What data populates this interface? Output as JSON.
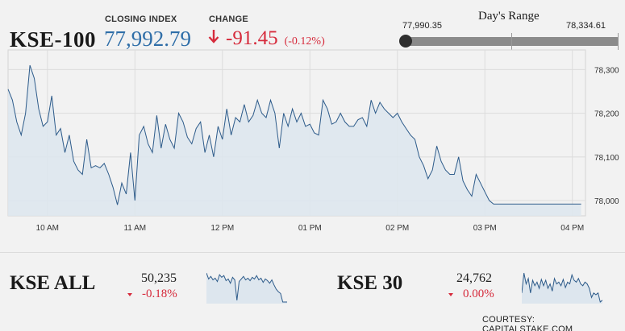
{
  "header": {
    "index_name": "KSE-100",
    "closing_label": "CLOSING INDEX",
    "closing_value": "77,992.79",
    "change_label": "CHANGE",
    "change_value": "-91.45",
    "change_pct": "(-0.12%)",
    "change_icon": "arrow-down-icon",
    "down_color": "#d62b3c",
    "value_color": "#2f6ea8"
  },
  "days_range": {
    "title": "Day's Range",
    "low": "77,990.35",
    "high": "78,334.61"
  },
  "chart_data": [
    {
      "type": "area",
      "title": "",
      "x_ticks": [
        "10 AM",
        "11 AM",
        "12 PM",
        "01 PM",
        "02 PM",
        "03 PM",
        "04 PM"
      ],
      "y_ticks": [
        "78,000",
        "78,100",
        "78,200",
        "78,300"
      ],
      "ylim": [
        77965,
        78345
      ],
      "xlim": [
        9.55,
        16.15
      ],
      "grid": true,
      "line_color": "#2d5b8a",
      "fill_color": "#dde6ee",
      "x": [
        9.55,
        9.6,
        9.65,
        9.7,
        9.75,
        9.8,
        9.85,
        9.9,
        9.95,
        10.0,
        10.05,
        10.1,
        10.15,
        10.2,
        10.25,
        10.3,
        10.35,
        10.4,
        10.45,
        10.5,
        10.55,
        10.6,
        10.65,
        10.7,
        10.75,
        10.8,
        10.85,
        10.9,
        10.95,
        11.0,
        11.05,
        11.1,
        11.15,
        11.2,
        11.25,
        11.3,
        11.35,
        11.4,
        11.45,
        11.5,
        11.55,
        11.6,
        11.65,
        11.7,
        11.75,
        11.8,
        11.85,
        11.9,
        11.95,
        12.0,
        12.05,
        12.1,
        12.15,
        12.2,
        12.25,
        12.3,
        12.35,
        12.4,
        12.45,
        12.5,
        12.55,
        12.6,
        12.65,
        12.7,
        12.75,
        12.8,
        12.85,
        12.9,
        12.95,
        13.0,
        13.05,
        13.1,
        13.15,
        13.2,
        13.25,
        13.3,
        13.35,
        13.4,
        13.45,
        13.5,
        13.55,
        13.6,
        13.65,
        13.7,
        13.75,
        13.8,
        13.85,
        13.9,
        13.95,
        14.0,
        14.05,
        14.1,
        14.15,
        14.2,
        14.25,
        14.3,
        14.35,
        14.4,
        14.45,
        14.5,
        14.55,
        14.6,
        14.65,
        14.7,
        14.75,
        14.8,
        14.85,
        14.9,
        14.95,
        15.0,
        15.05,
        15.1,
        15.15,
        15.2,
        15.25,
        15.3,
        15.35,
        15.4,
        15.45,
        15.5,
        15.55,
        15.6,
        15.65,
        15.7,
        15.75,
        15.8,
        15.85,
        15.9,
        15.95,
        16.0,
        16.1
      ],
      "values": [
        78255,
        78230,
        78180,
        78150,
        78200,
        78310,
        78280,
        78210,
        78170,
        78180,
        78240,
        78150,
        78165,
        78110,
        78150,
        78090,
        78070,
        78060,
        78140,
        78075,
        78080,
        78075,
        78085,
        78060,
        78030,
        77990,
        78040,
        78015,
        78110,
        78000,
        78150,
        78170,
        78130,
        78110,
        78195,
        78120,
        78175,
        78140,
        78120,
        78200,
        78180,
        78145,
        78130,
        78165,
        78180,
        78110,
        78150,
        78100,
        78170,
        78140,
        78210,
        78150,
        78190,
        78180,
        78220,
        78180,
        78195,
        78230,
        78200,
        78190,
        78230,
        78200,
        78120,
        78200,
        78170,
        78210,
        78180,
        78200,
        78170,
        78175,
        78155,
        78150,
        78230,
        78210,
        78175,
        78180,
        78200,
        78180,
        78170,
        78170,
        78185,
        78190,
        78170,
        78230,
        78200,
        78225,
        78210,
        78200,
        78190,
        78200,
        78180,
        78165,
        78150,
        78140,
        78100,
        78080,
        78050,
        78070,
        78125,
        78090,
        78070,
        78060,
        78060,
        78100,
        78045,
        78025,
        78010,
        78060,
        78040,
        78020,
        78000,
        77992,
        77992,
        77992,
        77992,
        77992,
        77992,
        77992,
        77992,
        77992,
        77992,
        77992,
        77992,
        77992,
        77992,
        77992,
        77992,
        77992,
        77992,
        77992,
        77992
      ]
    },
    {
      "type": "area",
      "title": "",
      "line_color": "#2d5b8a",
      "fill_color": "#dde6ee",
      "values": [
        52,
        45,
        48,
        44,
        46,
        42,
        50,
        47,
        49,
        43,
        45,
        40,
        47,
        44,
        20,
        42,
        45,
        48,
        44,
        46,
        43,
        47,
        45,
        49,
        44,
        46,
        41,
        45,
        43,
        40,
        44,
        38,
        33,
        30,
        28,
        18,
        18,
        18
      ]
    },
    {
      "type": "area",
      "title": "",
      "line_color": "#2d5b8a",
      "fill_color": "#dde6ee",
      "values": [
        30,
        52,
        40,
        46,
        30,
        44,
        38,
        42,
        35,
        45,
        38,
        44,
        35,
        40,
        32,
        46,
        40,
        42,
        38,
        45,
        36,
        42,
        40,
        50,
        44,
        42,
        46,
        40,
        38,
        42,
        40,
        35,
        25,
        30,
        28,
        30,
        20,
        22
      ]
    }
  ],
  "kse_all": {
    "name": "KSE ALL",
    "value": "50,235",
    "change": "-0.18%"
  },
  "kse30": {
    "name": "KSE 30",
    "value": "24,762",
    "change": "0.00%"
  },
  "footer": {
    "courtesy": "COURTESY: CAPITALSTAKE.COM"
  }
}
